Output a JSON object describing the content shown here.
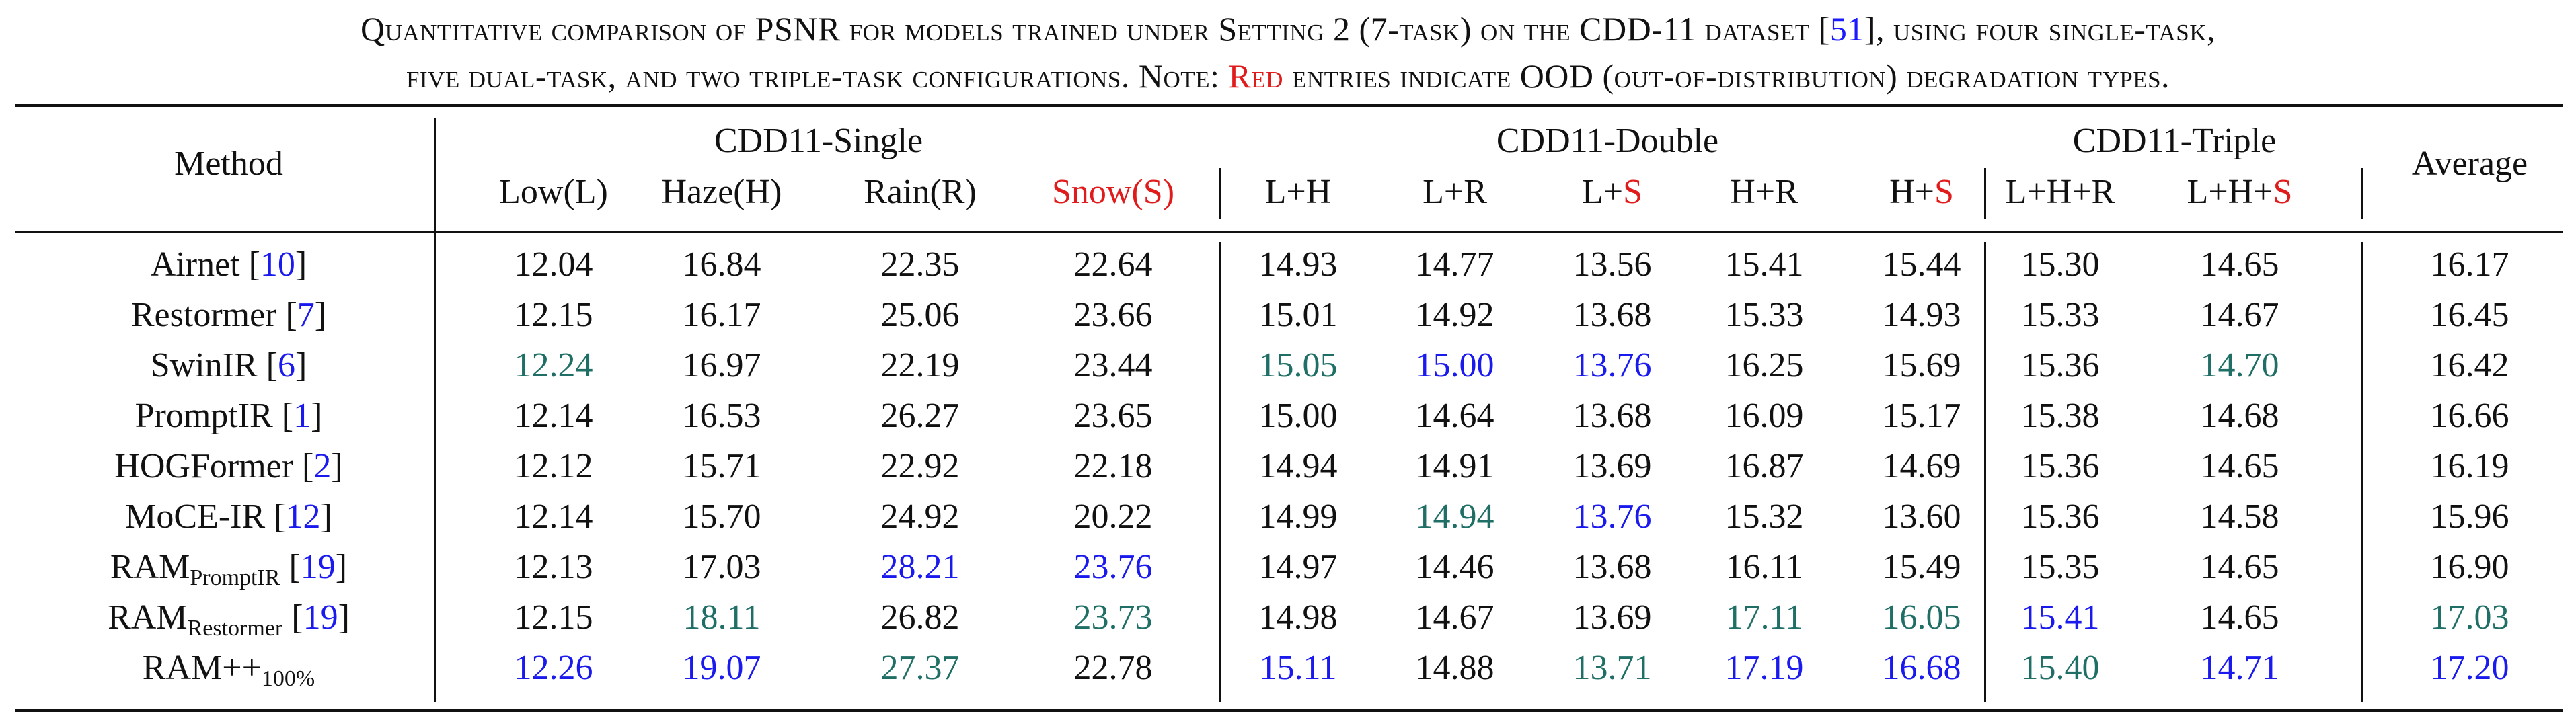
{
  "caption": {
    "line1_a": "Quantitative comparison of PSNR for models trained under Setting 2 (7-task) on the CDD-11 dataset [",
    "line1_ref": "51",
    "line1_b": "], using four single-task,",
    "line2_a": "five dual-task, and two triple-task configurations. Note: ",
    "line2_red": "Red",
    "line2_b": " entries indicate OOD (out-of-distribution) degradation types."
  },
  "header": {
    "method": "Method",
    "group_single": "CDD11-Single",
    "group_double": "CDD11-Double",
    "group_triple": "CDD11-Triple",
    "average": "Average",
    "cols": [
      {
        "pre": "Low(L)",
        "red": ""
      },
      {
        "pre": "Haze(H)",
        "red": ""
      },
      {
        "pre": "Rain(R)",
        "red": ""
      },
      {
        "pre": "",
        "red": "Snow(S)"
      },
      {
        "pre": "L+H",
        "red": ""
      },
      {
        "pre": "L+R",
        "red": ""
      },
      {
        "pre": "L+",
        "red": "S"
      },
      {
        "pre": "H+R",
        "red": ""
      },
      {
        "pre": "H+",
        "red": "S"
      },
      {
        "pre": "L+H+R",
        "red": ""
      },
      {
        "pre": "L+H+",
        "red": "S"
      }
    ]
  },
  "rows": [
    {
      "name": "Airnet ",
      "sub": "",
      "post": "",
      "ref": "10",
      "vals": [
        [
          "12.04",
          "k"
        ],
        [
          "16.84",
          "k"
        ],
        [
          "22.35",
          "k"
        ],
        [
          "22.64",
          "k"
        ],
        [
          "14.93",
          "k"
        ],
        [
          "14.77",
          "k"
        ],
        [
          "13.56",
          "k"
        ],
        [
          "15.41",
          "k"
        ],
        [
          "15.44",
          "k"
        ],
        [
          "15.30",
          "k"
        ],
        [
          "14.65",
          "k"
        ],
        [
          "16.17",
          "k"
        ]
      ]
    },
    {
      "name": "Restormer ",
      "sub": "",
      "post": "",
      "ref": "7",
      "vals": [
        [
          "12.15",
          "k"
        ],
        [
          "16.17",
          "k"
        ],
        [
          "25.06",
          "k"
        ],
        [
          "23.66",
          "k"
        ],
        [
          "15.01",
          "k"
        ],
        [
          "14.92",
          "k"
        ],
        [
          "13.68",
          "k"
        ],
        [
          "15.33",
          "k"
        ],
        [
          "14.93",
          "k"
        ],
        [
          "15.33",
          "k"
        ],
        [
          "14.67",
          "k"
        ],
        [
          "16.45",
          "k"
        ]
      ]
    },
    {
      "name": "SwinIR ",
      "sub": "",
      "post": "",
      "ref": "6",
      "vals": [
        [
          "12.24",
          "t"
        ],
        [
          "16.97",
          "k"
        ],
        [
          "22.19",
          "k"
        ],
        [
          "23.44",
          "k"
        ],
        [
          "15.05",
          "t"
        ],
        [
          "15.00",
          "b"
        ],
        [
          "13.76",
          "b"
        ],
        [
          "16.25",
          "k"
        ],
        [
          "15.69",
          "k"
        ],
        [
          "15.36",
          "k"
        ],
        [
          "14.70",
          "t"
        ],
        [
          "16.42",
          "k"
        ]
      ]
    },
    {
      "name": "PromptIR ",
      "sub": "",
      "post": "",
      "ref": "1",
      "vals": [
        [
          "12.14",
          "k"
        ],
        [
          "16.53",
          "k"
        ],
        [
          "26.27",
          "k"
        ],
        [
          "23.65",
          "k"
        ],
        [
          "15.00",
          "k"
        ],
        [
          "14.64",
          "k"
        ],
        [
          "13.68",
          "k"
        ],
        [
          "16.09",
          "k"
        ],
        [
          "15.17",
          "k"
        ],
        [
          "15.38",
          "k"
        ],
        [
          "14.68",
          "k"
        ],
        [
          "16.66",
          "k"
        ]
      ]
    },
    {
      "name": "HOGFormer ",
      "sub": "",
      "post": "",
      "ref": "2",
      "vals": [
        [
          "12.12",
          "k"
        ],
        [
          "15.71",
          "k"
        ],
        [
          "22.92",
          "k"
        ],
        [
          "22.18",
          "k"
        ],
        [
          "14.94",
          "k"
        ],
        [
          "14.91",
          "k"
        ],
        [
          "13.69",
          "k"
        ],
        [
          "16.87",
          "k"
        ],
        [
          "14.69",
          "k"
        ],
        [
          "15.36",
          "k"
        ],
        [
          "14.65",
          "k"
        ],
        [
          "16.19",
          "k"
        ]
      ]
    },
    {
      "name": "MoCE-IR ",
      "sub": "",
      "post": "",
      "ref": "12",
      "vals": [
        [
          "12.14",
          "k"
        ],
        [
          "15.70",
          "k"
        ],
        [
          "24.92",
          "k"
        ],
        [
          "20.22",
          "k"
        ],
        [
          "14.99",
          "k"
        ],
        [
          "14.94",
          "t"
        ],
        [
          "13.76",
          "b"
        ],
        [
          "15.32",
          "k"
        ],
        [
          "13.60",
          "k"
        ],
        [
          "15.36",
          "k"
        ],
        [
          "14.58",
          "k"
        ],
        [
          "15.96",
          "k"
        ]
      ]
    },
    {
      "name": "RAM",
      "sub": "PromptIR",
      "post": " ",
      "ref": "19",
      "vals": [
        [
          "12.13",
          "k"
        ],
        [
          "17.03",
          "k"
        ],
        [
          "28.21",
          "b"
        ],
        [
          "23.76",
          "b"
        ],
        [
          "14.97",
          "k"
        ],
        [
          "14.46",
          "k"
        ],
        [
          "13.68",
          "k"
        ],
        [
          "16.11",
          "k"
        ],
        [
          "15.49",
          "k"
        ],
        [
          "15.35",
          "k"
        ],
        [
          "14.65",
          "k"
        ],
        [
          "16.90",
          "k"
        ]
      ]
    },
    {
      "name": "RAM",
      "sub": "Restormer",
      "post": " ",
      "ref": "19",
      "vals": [
        [
          "12.15",
          "k"
        ],
        [
          "18.11",
          "t"
        ],
        [
          "26.82",
          "k"
        ],
        [
          "23.73",
          "t"
        ],
        [
          "14.98",
          "k"
        ],
        [
          "14.67",
          "k"
        ],
        [
          "13.69",
          "k"
        ],
        [
          "17.11",
          "t"
        ],
        [
          "16.05",
          "t"
        ],
        [
          "15.41",
          "b"
        ],
        [
          "14.65",
          "k"
        ],
        [
          "17.03",
          "t"
        ]
      ]
    },
    {
      "name": "RAM++",
      "sub": "100%",
      "post": "",
      "ref": "",
      "vals": [
        [
          "12.26",
          "b"
        ],
        [
          "19.07",
          "b"
        ],
        [
          "27.37",
          "t"
        ],
        [
          "22.78",
          "k"
        ],
        [
          "15.11",
          "b"
        ],
        [
          "14.88",
          "k"
        ],
        [
          "13.71",
          "t"
        ],
        [
          "17.19",
          "b"
        ],
        [
          "16.68",
          "b"
        ],
        [
          "15.40",
          "t"
        ],
        [
          "14.71",
          "b"
        ],
        [
          "17.20",
          "b"
        ]
      ]
    }
  ]
}
